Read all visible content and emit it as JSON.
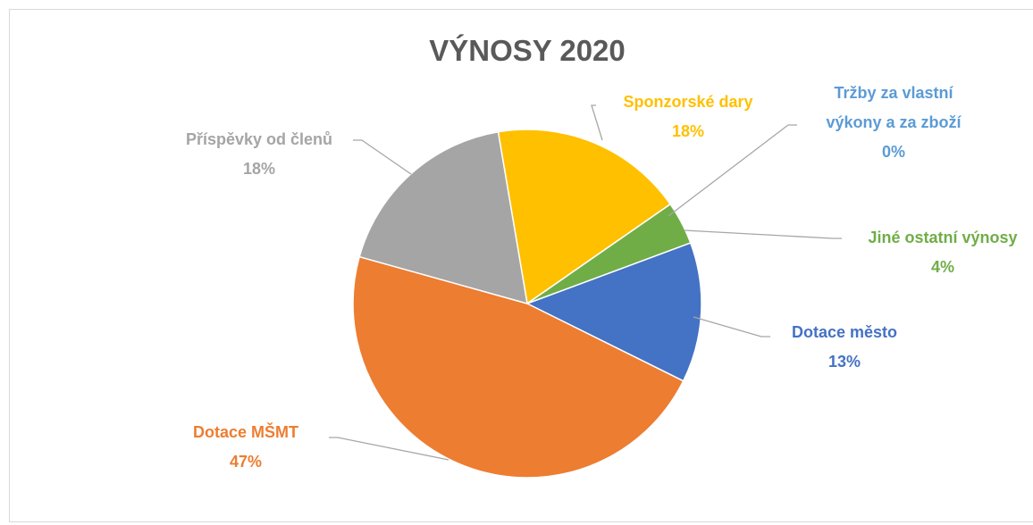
{
  "chart_data": {
    "type": "pie",
    "title": "VÝNOSY 2020",
    "categories": [
      "Sponzorské dary",
      "Tržby za vlastní výkony a za zboží",
      "Jiné ostatní výnosy",
      "Dotace město",
      "Dotace MŠMT",
      "Příspěvky od členů"
    ],
    "values": [
      18,
      0,
      4,
      13,
      47,
      18
    ],
    "value_labels": [
      "18%",
      "0%",
      "4%",
      "13%",
      "47%",
      "18%"
    ],
    "colors": [
      "#FFC000",
      "#5B9BD5",
      "#70AD47",
      "#4472C4",
      "#ED7D31",
      "#A5A5A5"
    ]
  }
}
